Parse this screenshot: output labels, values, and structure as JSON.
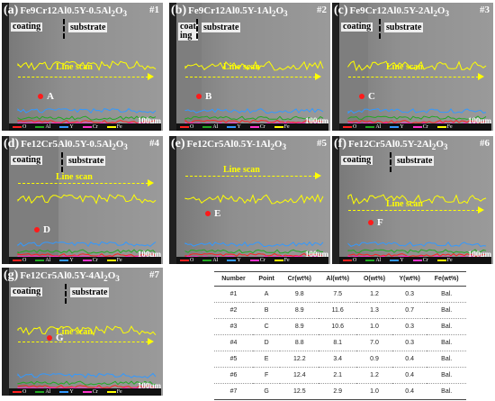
{
  "panels": [
    {
      "letter": "(a)",
      "alloy": "Fe9Cr12Al0.5Y-0.5Al",
      "ox": "2",
      "ox3": "O",
      "ox3sub": "3",
      "num": "#1",
      "point": "A",
      "coating": "coating",
      "substrate": "substrate",
      "line_scan": "Line scan",
      "scale": "100μm"
    },
    {
      "letter": "(b)",
      "alloy": "Fe9Cr12Al0.5Y-1Al",
      "ox": "2",
      "ox3": "O",
      "ox3sub": "3",
      "num": "#2",
      "point": "B",
      "coating": "coat\ning",
      "substrate": "substrate",
      "line_scan": "Line scan",
      "scale": "100μm"
    },
    {
      "letter": "(c)",
      "alloy": "Fe9Cr12Al0.5Y-2Al",
      "ox": "2",
      "ox3": "O",
      "ox3sub": "3",
      "num": "#3",
      "point": "C",
      "coating": "coating",
      "substrate": "substrate",
      "line_scan": "Line scan",
      "scale": "100μm"
    },
    {
      "letter": "(d)",
      "alloy": "Fe12Cr5Al0.5Y-0.5Al",
      "ox": "2",
      "ox3": "O",
      "ox3sub": "3",
      "num": "#4",
      "point": "D",
      "coating": "coating",
      "substrate": "substrate",
      "line_scan": "Line scan",
      "scale": "100μm"
    },
    {
      "letter": "(e)",
      "alloy": "Fe12Cr5Al0.5Y-1Al",
      "ox": "2",
      "ox3": "O",
      "ox3sub": "3",
      "num": "#5",
      "point": "E",
      "coating": "",
      "substrate": "",
      "line_scan": "Line scan",
      "scale": "100μm"
    },
    {
      "letter": "(f)",
      "alloy": "Fe12Cr5Al0.5Y-2Al",
      "ox": "2",
      "ox3": "O",
      "ox3sub": "3",
      "num": "#6",
      "point": "F",
      "coating": "coating",
      "substrate": "substrate",
      "line_scan": "Line scan",
      "scale": "100μm"
    },
    {
      "letter": "(g)",
      "alloy": "Fe12Cr5Al0.5Y-4Al",
      "ox": "2",
      "ox3": "O",
      "ox3sub": "3",
      "num": "#7",
      "point": "G",
      "coating": "coating",
      "substrate": "substrate",
      "line_scan": "Line scan",
      "scale": "100μm"
    }
  ],
  "legend": [
    "O",
    "Al",
    "Y",
    "Cr",
    "Fe"
  ],
  "colors": {
    "O": "#ff2020",
    "Al": "#22aa22",
    "Y": "#3399ff",
    "Cr": "#ff33cc",
    "Fe": "#ffff00"
  },
  "table": {
    "headers": [
      "Number",
      "Point",
      "Cr(wt%)",
      "Al(wt%)",
      "O(wt%)",
      "Y(wt%)",
      "Fe(wt%)"
    ],
    "rows": [
      [
        "#1",
        "A",
        "9.8",
        "7.5",
        "1.2",
        "0.3",
        "Bal."
      ],
      [
        "#2",
        "B",
        "8.9",
        "11.6",
        "1.3",
        "0.7",
        "Bal."
      ],
      [
        "#3",
        "C",
        "8.9",
        "10.6",
        "1.0",
        "0.3",
        "Bal."
      ],
      [
        "#4",
        "D",
        "8.8",
        "8.1",
        "7.0",
        "0.3",
        "Bal."
      ],
      [
        "#5",
        "E",
        "12.2",
        "3.4",
        "0.9",
        "0.4",
        "Bal."
      ],
      [
        "#6",
        "F",
        "12.4",
        "2.1",
        "1.2",
        "0.4",
        "Bal."
      ],
      [
        "#7",
        "G",
        "12.5",
        "2.9",
        "1.0",
        "0.4",
        "Bal."
      ]
    ]
  }
}
